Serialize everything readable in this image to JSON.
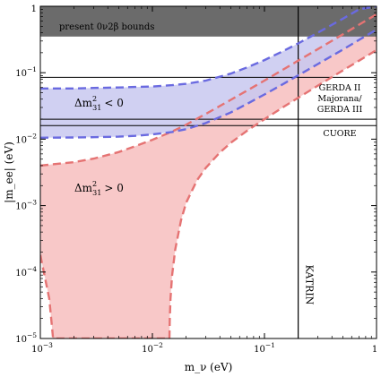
{
  "chart_data": {
    "type": "line",
    "xlabel": "m_ν (eV)",
    "ylabel": "|m_ee| (eV)",
    "x_scale": "log",
    "y_scale": "log",
    "xlim": [
      0.001,
      1
    ],
    "ylim": [
      1e-05,
      1
    ],
    "x_ticks": [
      {
        "value": 0.001,
        "mant": "10",
        "exp": "−3"
      },
      {
        "value": 0.01,
        "mant": "10",
        "exp": "−2"
      },
      {
        "value": 0.1,
        "mant": "10",
        "exp": "−1"
      },
      {
        "value": 1,
        "mant": "1",
        "exp": ""
      }
    ],
    "y_ticks": [
      {
        "value": 1e-05,
        "mant": "10",
        "exp": "−5"
      },
      {
        "value": 0.0001,
        "mant": "10",
        "exp": "−4"
      },
      {
        "value": 0.001,
        "mant": "10",
        "exp": "−3"
      },
      {
        "value": 0.01,
        "mant": "10",
        "exp": "−2"
      },
      {
        "value": 0.1,
        "mant": "10",
        "exp": "−1"
      },
      {
        "value": 1,
        "mant": "1",
        "exp": ""
      }
    ],
    "colors": {
      "normal_fill": "#f8c8c8",
      "normal_line": "#e57373",
      "inverted_fill": "#c8c8f0",
      "inverted_line": "#6a6ae0",
      "excluded": "#6b6b6b",
      "overlap_fill": "#d6c0ec"
    },
    "excluded_band": {
      "label": "present 0ν2β bounds",
      "y_min": 0.35,
      "y_max": 1
    },
    "experiment_lines": [
      {
        "label": "GERDA II",
        "y": 0.085
      },
      {
        "label": "Majorana/ GERDA III",
        "y": 0.02
      },
      {
        "label": "CUORE",
        "y": 0.016
      }
    ],
    "katrin": {
      "label": "KATRIN",
      "x": 0.2
    },
    "region_labels": [
      {
        "text": "Δm²₃₁ < 0",
        "base": "Δm",
        "sub": "31",
        "sup": "2",
        "rel": "< 0"
      },
      {
        "text": "Δm²₃₁ > 0",
        "base": "Δm",
        "sub": "31",
        "sup": "2",
        "rel": "> 0"
      }
    ],
    "series": [
      {
        "name": "Δm²₃₁ > 0",
        "role": "upper",
        "x": [
          0.001,
          0.002,
          0.003,
          0.005,
          0.007,
          0.01,
          0.015,
          0.02,
          0.03,
          0.05,
          0.07,
          0.1,
          0.15,
          0.2,
          0.3,
          0.5,
          0.7,
          1
        ],
        "y": [
          0.004,
          0.0045,
          0.0051,
          0.0064,
          0.0078,
          0.0098,
          0.013,
          0.0165,
          0.024,
          0.039,
          0.054,
          0.076,
          0.114,
          0.152,
          0.227,
          0.378,
          0.53,
          0.757
        ]
      },
      {
        "name": "Δm²₃₁ > 0",
        "role": "lower",
        "x": [
          0.001,
          0.0012,
          0.00125,
          0.0013,
          0.00135,
          0.0014,
          0.0016,
          0.002,
          0.0025,
          0.003,
          0.004,
          0.005,
          0.006,
          0.007,
          0.008,
          0.01,
          0.012,
          0.013,
          0.0138,
          0.0141
        ],
        "y": [
          0.00018,
          4e-05,
          2e-05,
          1e-05,
          1e-05,
          1e-05,
          1e-05,
          1e-05,
          1e-05,
          1e-05,
          1e-05,
          1e-05,
          1e-05,
          1e-05,
          1e-05,
          1e-05,
          1e-05,
          1e-05,
          1e-05,
          1e-05
        ]
      },
      {
        "name": "Δm²₃₁ > 0",
        "role": "lower",
        "x": [
          0.0142,
          0.0143,
          0.0145,
          0.015,
          0.016,
          0.018,
          0.02,
          0.025,
          0.03,
          0.04,
          0.05,
          0.07,
          0.1,
          0.15,
          0.2,
          0.3,
          0.5,
          0.7,
          1
        ],
        "y": [
          1e-05,
          2e-05,
          4e-05,
          9e-05,
          0.00022,
          0.0006,
          0.0011,
          0.0024,
          0.0037,
          0.0063,
          0.0088,
          0.0134,
          0.02,
          0.031,
          0.042,
          0.064,
          0.108,
          0.152,
          0.219
        ]
      },
      {
        "name": "Δm²₃₁ < 0",
        "role": "upper",
        "x": [
          0.001,
          0.002,
          0.003,
          0.005,
          0.007,
          0.01,
          0.015,
          0.02,
          0.03,
          0.05,
          0.07,
          0.1,
          0.15,
          0.2,
          0.3,
          0.5,
          0.7,
          1
        ],
        "y": [
          0.058,
          0.058,
          0.059,
          0.06,
          0.061,
          0.062,
          0.065,
          0.068,
          0.076,
          0.097,
          0.12,
          0.155,
          0.215,
          0.276,
          0.4,
          0.65,
          0.9,
          1.0
        ]
      },
      {
        "name": "Δm²₃₁ < 0",
        "role": "lower",
        "x": [
          0.001,
          0.002,
          0.003,
          0.005,
          0.007,
          0.01,
          0.015,
          0.02,
          0.03,
          0.05,
          0.07,
          0.1,
          0.15,
          0.2,
          0.3,
          0.5,
          0.7,
          1
        ],
        "y": [
          0.0105,
          0.0106,
          0.0107,
          0.0109,
          0.0112,
          0.0118,
          0.0128,
          0.0141,
          0.0175,
          0.0252,
          0.034,
          0.047,
          0.069,
          0.091,
          0.135,
          0.223,
          0.312,
          0.445
        ]
      }
    ]
  }
}
